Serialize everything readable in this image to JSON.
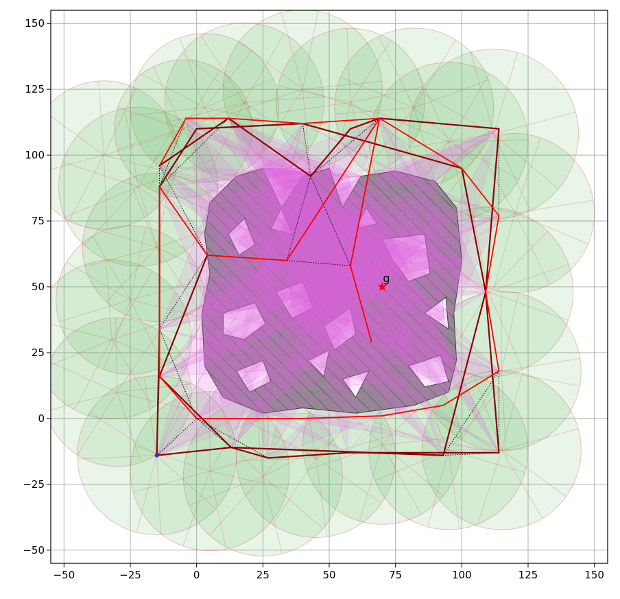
{
  "chart_data": {
    "type": "scatter",
    "title": "",
    "xlabel": "",
    "ylabel": "",
    "xlim": [
      -55,
      155
    ],
    "ylim": [
      -55,
      155
    ],
    "grid": true,
    "xticks": [
      -50,
      -25,
      0,
      25,
      50,
      75,
      100,
      125,
      150
    ],
    "yticks": [
      -50,
      -25,
      0,
      25,
      50,
      75,
      100,
      125,
      150
    ],
    "xtick_labels": [
      "−50",
      "−25",
      "0",
      "25",
      "50",
      "75",
      "100",
      "125",
      "150"
    ],
    "ytick_labels": [
      "−50",
      "−25",
      "0",
      "25",
      "50",
      "75",
      "100",
      "125",
      "150"
    ],
    "colors": {
      "sensor_fill": "#4caf50",
      "sensor_edge": "#d9534f",
      "obstacle": "#8c8c8c",
      "visibility_fan": "#e066e0",
      "path_primary": "#ff0000",
      "path_dark": "#8b0000",
      "graph_edge": "#000000",
      "goal_marker": "#ff0000"
    },
    "goal": {
      "label": "g",
      "x": 70,
      "y": 50
    },
    "start": {
      "x": -15,
      "y": -14
    },
    "sensor_circles": [
      {
        "x": -35,
        "y": 100,
        "r": 28
      },
      {
        "x": -22,
        "y": 88,
        "r": 30
      },
      {
        "x": 3,
        "y": 118,
        "r": 28
      },
      {
        "x": 18,
        "y": 120,
        "r": 30
      },
      {
        "x": 40,
        "y": 125,
        "r": 30
      },
      {
        "x": 58,
        "y": 120,
        "r": 28
      },
      {
        "x": 82,
        "y": 118,
        "r": 30
      },
      {
        "x": 95,
        "y": 105,
        "r": 30
      },
      {
        "x": 112,
        "y": 108,
        "r": 32
      },
      {
        "x": 120,
        "y": 78,
        "r": 30
      },
      {
        "x": 110,
        "y": 48,
        "r": 32
      },
      {
        "x": 115,
        "y": 18,
        "r": 30
      },
      {
        "x": 115,
        "y": -12,
        "r": 30
      },
      {
        "x": 95,
        "y": -12,
        "r": 30
      },
      {
        "x": 70,
        "y": -10,
        "r": 30
      },
      {
        "x": 45,
        "y": -15,
        "r": 30
      },
      {
        "x": 25,
        "y": -22,
        "r": 30
      },
      {
        "x": 5,
        "y": -20,
        "r": 30
      },
      {
        "x": -15,
        "y": -14,
        "r": 30
      },
      {
        "x": -30,
        "y": 10,
        "r": 28
      },
      {
        "x": -32,
        "y": 30,
        "r": 30
      },
      {
        "x": -25,
        "y": 45,
        "r": 28
      },
      {
        "x": -15,
        "y": 65,
        "r": 28
      },
      {
        "x": -5,
        "y": 110,
        "r": 26
      }
    ],
    "waypoints": [
      {
        "x": -14,
        "y": 96
      },
      {
        "x": -4,
        "y": 114
      },
      {
        "x": 12,
        "y": 114
      },
      {
        "x": 40,
        "y": 112
      },
      {
        "x": 69,
        "y": 114
      },
      {
        "x": 114,
        "y": 110
      },
      {
        "x": 114,
        "y": 77
      },
      {
        "x": 109,
        "y": 48
      },
      {
        "x": 114,
        "y": 18
      },
      {
        "x": 114,
        "y": -13
      },
      {
        "x": 93,
        "y": -14
      },
      {
        "x": 57,
        "y": -13
      },
      {
        "x": 27,
        "y": -15
      },
      {
        "x": 13,
        "y": -11
      },
      {
        "x": -15,
        "y": -14
      },
      {
        "x": -14,
        "y": 16
      },
      {
        "x": -14,
        "y": 34
      },
      {
        "x": -14,
        "y": 88
      },
      {
        "x": 4,
        "y": 62
      },
      {
        "x": 34,
        "y": 60
      },
      {
        "x": 43,
        "y": 92
      },
      {
        "x": 58,
        "y": 58
      },
      {
        "x": 66,
        "y": 29
      },
      {
        "x": 0,
        "y": 0
      }
    ],
    "red_path": [
      [
        -14,
        96
      ],
      [
        -4,
        114
      ],
      [
        12,
        114
      ],
      [
        40,
        112
      ],
      [
        69,
        114
      ],
      [
        100,
        95
      ],
      [
        114,
        77
      ],
      [
        109,
        48
      ],
      [
        114,
        18
      ],
      [
        93,
        5
      ],
      [
        70,
        1
      ],
      [
        40,
        0
      ],
      [
        0,
        0
      ],
      [
        -14,
        16
      ],
      [
        -14,
        34
      ],
      [
        -14,
        88
      ],
      [
        4,
        62
      ],
      [
        34,
        60
      ],
      [
        69,
        114
      ],
      [
        58,
        58
      ],
      [
        66,
        29
      ]
    ],
    "dark_path": [
      [
        -14,
        96
      ],
      [
        12,
        114
      ],
      [
        43,
        92
      ],
      [
        58,
        110
      ],
      [
        69,
        114
      ],
      [
        114,
        110
      ],
      [
        109,
        48
      ],
      [
        114,
        -13
      ],
      [
        57,
        -13
      ],
      [
        27,
        -15
      ],
      [
        13,
        -11
      ],
      [
        -15,
        -14
      ],
      [
        -14,
        34
      ],
      [
        -14,
        88
      ],
      [
        0,
        110
      ],
      [
        40,
        112
      ],
      [
        100,
        95
      ],
      [
        109,
        48
      ],
      [
        93,
        -14
      ],
      [
        13,
        -11
      ],
      [
        -14,
        16
      ],
      [
        4,
        62
      ]
    ]
  }
}
